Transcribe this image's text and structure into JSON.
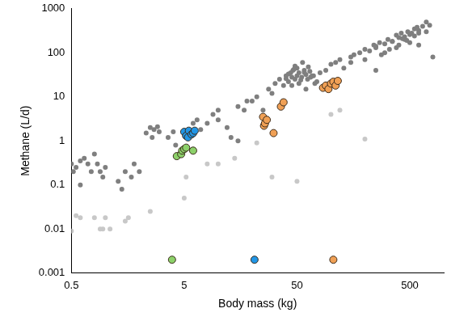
{
  "chart_data": {
    "type": "scatter",
    "x_label": "Body mass (kg)",
    "y_label": "Methane (L/d)",
    "log": true,
    "grid": false,
    "xlim": [
      0.5,
      1000
    ],
    "xticks": [
      0.5,
      5,
      50,
      500
    ],
    "ylim": [
      0.001,
      1000
    ],
    "yticks": [
      0.001,
      0.01,
      0.1,
      1,
      10,
      100,
      1000
    ],
    "series": [
      {
        "color": "#c8c8c8",
        "marker": "circle",
        "x": [
          0.5,
          0.55,
          0.6,
          0.8,
          0.9,
          0.95,
          1.0,
          1.1,
          1.5,
          1.6,
          2.5,
          5,
          5.2,
          8,
          10,
          14,
          22,
          30,
          50,
          100,
          120,
          200
        ],
        "values": [
          0.009,
          0.02,
          0.018,
          0.018,
          0.01,
          0.01,
          0.018,
          0.01,
          0.015,
          0.018,
          0.025,
          0.05,
          0.15,
          0.3,
          0.3,
          0.4,
          0.9,
          0.15,
          0.12,
          4,
          5,
          1.1
        ]
      },
      {
        "color": "#7f7f7f",
        "marker": "circle",
        "x": [
          0.5,
          0.52,
          0.55,
          0.6,
          0.65,
          0.7,
          0.75,
          0.8,
          0.85,
          0.9,
          0.95,
          1.0,
          0.6,
          1.3,
          1.4,
          1.5,
          1.7,
          1.8,
          2.0,
          2.3,
          2.5,
          2.7,
          3.0,
          2.6,
          2.9,
          3.6,
          4.0,
          4.2,
          6.0,
          6.5,
          7.0,
          8.0,
          9.0,
          10,
          10,
          12,
          13,
          15,
          15,
          17,
          18,
          20,
          22,
          25,
          28,
          30,
          32,
          35,
          38,
          40,
          42,
          44,
          45,
          46,
          48,
          50,
          50,
          52,
          55,
          58,
          60,
          62,
          65,
          70,
          75,
          80,
          45,
          48,
          52,
          56,
          60,
          66,
          40,
          42,
          47,
          54,
          58,
          63,
          68,
          72,
          90,
          100,
          110,
          120,
          130,
          150,
          160,
          180,
          200,
          220,
          240,
          250,
          270,
          300,
          320,
          350,
          380,
          400,
          420,
          450,
          480,
          500,
          550,
          600,
          650,
          700,
          750,
          800,
          250,
          300,
          350,
          400,
          450,
          500,
          550,
          600,
          200,
          280,
          330,
          380,
          430,
          470,
          520,
          580,
          150,
          250,
          600,
          700
        ],
        "values": [
          0.3,
          0.2,
          0.25,
          0.35,
          0.4,
          0.3,
          0.2,
          0.5,
          0.3,
          0.2,
          0.15,
          0.25,
          0.1,
          0.12,
          0.08,
          0.2,
          0.15,
          0.3,
          0.2,
          1.5,
          2,
          1.8,
          1.6,
          1.2,
          2.1,
          1.2,
          1.6,
          0.8,
          2.5,
          3,
          1.8,
          2.5,
          4,
          5,
          3,
          2,
          1.2,
          1,
          6,
          5,
          8,
          8,
          10,
          5,
          15,
          12,
          20,
          25,
          18,
          30,
          22,
          35,
          28,
          40,
          25,
          30,
          45,
          35,
          28,
          40,
          32,
          25,
          38,
          30,
          22,
          35,
          18,
          50,
          20,
          60,
          15,
          28,
          26,
          33,
          42,
          24,
          36,
          48,
          30,
          20,
          40,
          55,
          60,
          70,
          45,
          80,
          90,
          100,
          120,
          110,
          150,
          130,
          170,
          160,
          200,
          180,
          250,
          220,
          280,
          230,
          300,
          260,
          350,
          320,
          400,
          300,
          420,
          80,
          140,
          100,
          180,
          150,
          200,
          170,
          240,
          280,
          70,
          90,
          120,
          130,
          210,
          190,
          280,
          380,
          60,
          40,
          150,
          500
        ]
      },
      {
        "color": "#8cd16a",
        "marker": "circle",
        "x": [
          4.3,
          4.7,
          4.8,
          5.0,
          5.2,
          6.0
        ],
        "values": [
          0.45,
          0.5,
          0.6,
          0.65,
          0.7,
          0.6
        ]
      },
      {
        "color": "#2196e6",
        "marker": "circle",
        "x": [
          5.0,
          5.2,
          5.4,
          5.5,
          5.8,
          6.0,
          6.2
        ],
        "values": [
          1.6,
          1.3,
          1.2,
          1.7,
          1.4,
          1.5,
          1.7
        ]
      },
      {
        "color": "#f0a055",
        "marker": "circle",
        "x": [
          25,
          25.5,
          26,
          27,
          31,
          36,
          38,
          85,
          90,
          95,
          100,
          105,
          110,
          115
        ],
        "values": [
          3.5,
          2.2,
          2.5,
          3,
          1.5,
          6,
          7.5,
          16,
          18,
          15,
          20,
          22,
          18,
          23
        ]
      },
      {
        "color": "#8cd16a",
        "marker": "circle",
        "x": [
          3.9
        ],
        "values": [
          0.002
        ]
      },
      {
        "color": "#2196e6",
        "marker": "circle",
        "x": [
          21
        ],
        "values": [
          0.002
        ]
      },
      {
        "color": "#f0a055",
        "marker": "circle",
        "x": [
          105
        ],
        "values": [
          0.002
        ]
      }
    ]
  }
}
